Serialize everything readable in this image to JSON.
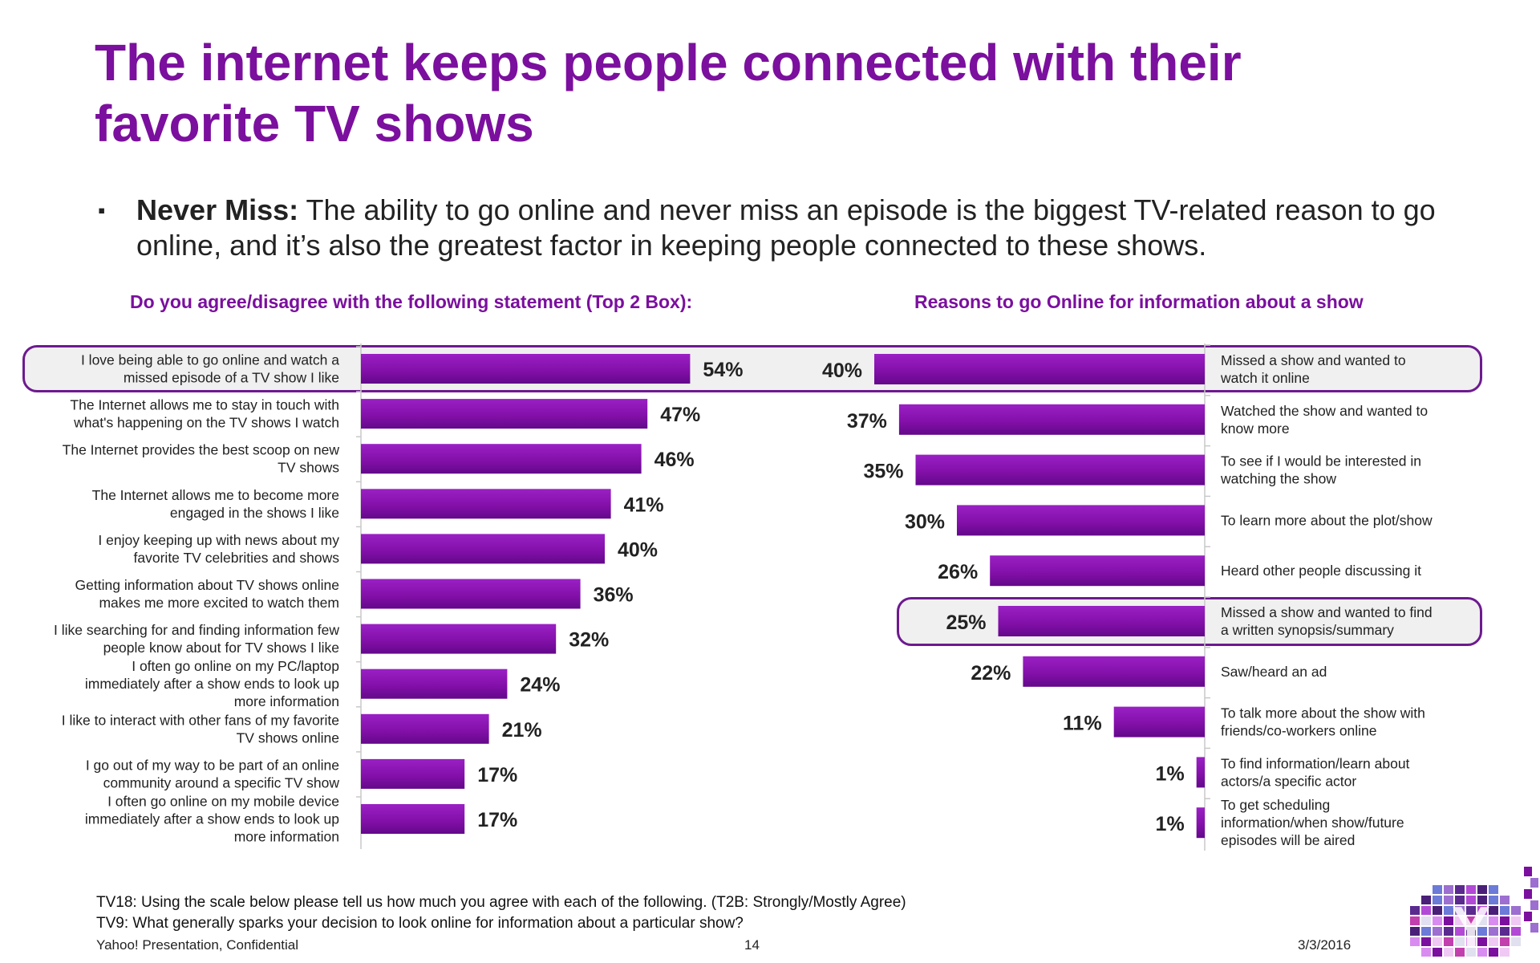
{
  "title": "The internet keeps people connected with their favorite TV shows",
  "bullet": {
    "bold": "Never Miss:",
    "text": " The ability to go online and never miss an episode is the biggest TV-related reason to go online, and it’s also the greatest factor in keeping people connected to these shows."
  },
  "colors": {
    "accent": "#7b0f9e",
    "bar": "#8a12b0",
    "highlight_border": "#6d1a8f"
  },
  "chart_data": [
    {
      "type": "bar",
      "orientation": "horizontal",
      "title": "Do you agree/disagree with the following statement (Top 2 Box):",
      "categories": [
        "I love being able to go online and watch a missed episode of a TV show I like",
        "The Internet allows me to stay in touch with what's happening on the TV shows I watch",
        "The Internet provides the best scoop on new TV shows",
        "The Internet allows me to become more engaged in the shows I like",
        "I enjoy keeping up with news about my favorite TV celebrities and shows",
        "Getting information about TV shows online makes me more excited to watch them",
        "I like searching for and finding information few people know about for TV shows I like",
        "I often go online on my PC/laptop immediately after a show ends to look up more information",
        "I like to interact with other fans of my favorite TV shows online",
        "I go out of my way to be part of an online community around a specific TV show",
        "I often go online on my mobile device immediately after a show ends to look up more information"
      ],
      "label_lines": [
        [
          "I love being able to go online and watch a",
          "missed episode of a TV show I like"
        ],
        [
          "The Internet allows me to stay in touch with",
          "what's happening on the TV shows I watch"
        ],
        [
          "The Internet provides the best scoop on new",
          "TV shows"
        ],
        [
          "The Internet allows me to become more",
          "engaged in the shows I like"
        ],
        [
          "I enjoy keeping up with news about my",
          "favorite TV celebrities and shows"
        ],
        [
          "Getting information about TV shows online",
          "makes me more excited to watch them"
        ],
        [
          "I like searching for and finding information few",
          "people know about for TV shows I like"
        ],
        [
          "I often go online on my PC/laptop",
          "immediately after a show ends to look up",
          "more information"
        ],
        [
          "I like to interact with other fans of my favorite",
          "TV shows online"
        ],
        [
          "I go out of my way to be part of an online",
          "community around a specific TV show"
        ],
        [
          "I often go online on my mobile device",
          "immediately after a show ends to look up",
          "more information"
        ]
      ],
      "values": [
        54,
        47,
        46,
        41,
        40,
        36,
        32,
        24,
        21,
        17,
        17
      ],
      "value_labels": [
        "54%",
        "47%",
        "46%",
        "41%",
        "40%",
        "36%",
        "32%",
        "24%",
        "21%",
        "17%",
        "17%"
      ],
      "unit": "%",
      "highlight_index": 0
    },
    {
      "type": "bar",
      "orientation": "horizontal",
      "direction": "right-to-left",
      "title": "Reasons to go Online for information about a show",
      "categories": [
        "Missed a show and wanted to watch it online",
        "Watched the show and wanted to know more",
        "To see if I would be interested in watching the show",
        "To learn more about the plot/show",
        "Heard other people discussing it",
        "Missed a show and wanted to find a written synopsis/summary",
        "Saw/heard an ad",
        "To talk more about the show with friends/co-workers online",
        "To find information/learn about actors/a specific actor",
        "To get scheduling information/when show/future episodes will be aired"
      ],
      "label_lines": [
        [
          "Missed a show and wanted to",
          "watch it online"
        ],
        [
          "Watched the show and wanted to",
          "know more"
        ],
        [
          "To see if I would be interested in",
          "watching the show"
        ],
        [
          "To learn more about the plot/show"
        ],
        [
          "Heard other people discussing it"
        ],
        [
          "Missed a show and wanted to find",
          "a written synopsis/summary"
        ],
        [
          "Saw/heard an ad"
        ],
        [
          "To talk more about the show with",
          "friends/co-workers online"
        ],
        [
          "To find information/learn about",
          "actors/a specific actor"
        ],
        [
          "To get scheduling",
          "information/when show/future",
          "episodes will be aired"
        ]
      ],
      "values": [
        40,
        37,
        35,
        30,
        26,
        25,
        22,
        11,
        1,
        1
      ],
      "value_labels": [
        "40%",
        "37%",
        "35%",
        "30%",
        "26%",
        "25%",
        "22%",
        "11%",
        "1%",
        "1%"
      ],
      "unit": "%",
      "highlight_indices": [
        0,
        5
      ]
    }
  ],
  "footnotes": {
    "q1": "TV18: Using the scale below please tell us how much you agree with each of the following. (T2B: Strongly/Mostly Agree)",
    "q2": "TV9: What generally sparks your decision to look online for information about a particular show?"
  },
  "footer": {
    "confidential": "Yahoo! Presentation, Confidential",
    "page": "14",
    "date": "3/3/2016"
  },
  "logo": {
    "icon": "yahoo-mosaic-logo",
    "letter": "Y"
  }
}
